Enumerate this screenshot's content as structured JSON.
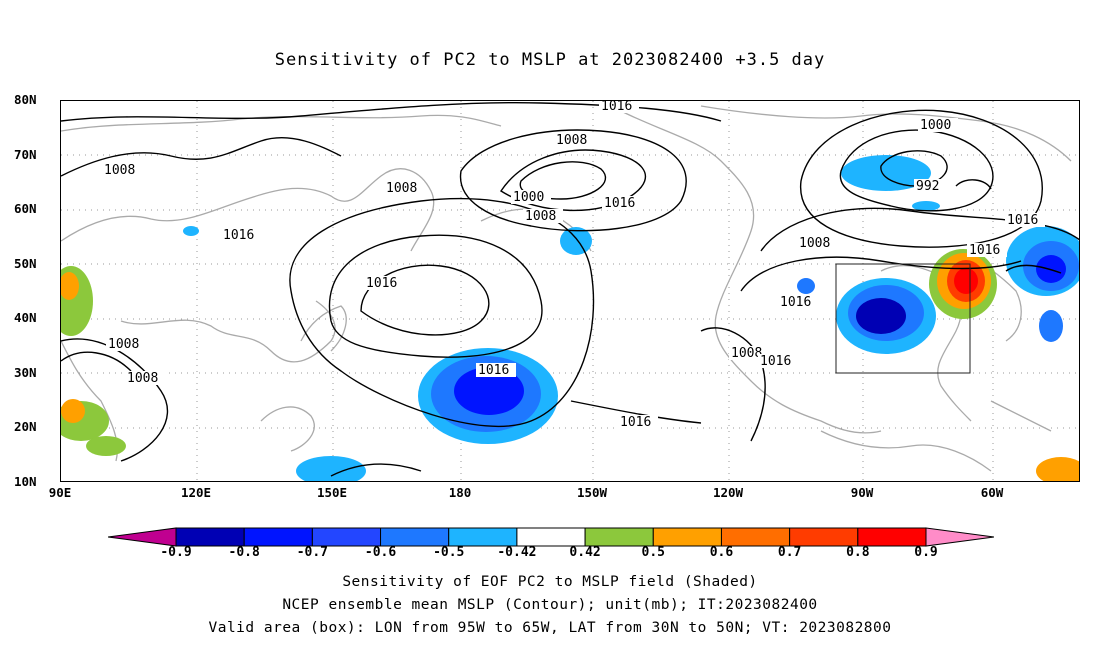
{
  "title": "Sensitivity of PC2 to MSLP at 2023082400 +3.5 day",
  "map": {
    "lat_labels": [
      "80N",
      "70N",
      "60N",
      "50N",
      "40N",
      "30N",
      "20N",
      "10N"
    ],
    "lon_labels": [
      "90E",
      "120E",
      "150E",
      "180",
      "150W",
      "120W",
      "90W",
      "60W"
    ],
    "contour_labels": [
      "1016",
      "1008",
      "1000",
      "992",
      "1008",
      "1008",
      "1000",
      "1008",
      "1016",
      "1016",
      "1016",
      "1016",
      "1016",
      "1008",
      "1008",
      "1008",
      "1016",
      "1016",
      "1008",
      "1016",
      "1016"
    ],
    "box": {
      "lon_from": "95W",
      "lon_to": "65W",
      "lat_from": "30N",
      "lat_to": "50N"
    }
  },
  "colorbar": {
    "labels": [
      "-0.9",
      "-0.8",
      "-0.7",
      "-0.6",
      "-0.5",
      "-0.42",
      "0.42",
      "0.5",
      "0.6",
      "0.7",
      "0.8",
      "0.9"
    ],
    "colors": [
      "#c00090",
      "#0000b4",
      "#0014ff",
      "#2346ff",
      "#1e78ff",
      "#1eb4ff",
      "#ffffff",
      "#8cc83c",
      "#ffa000",
      "#ff6e00",
      "#ff3c00",
      "#ff0000",
      "#ff8cc8"
    ]
  },
  "captions": [
    "Sensitivity of EOF PC2 to MSLP field (Shaded)",
    "NCEP ensemble mean MSLP (Contour); unit(mb); IT:2023082400",
    "Valid area (box): LON from 95W to 65W, LAT from 30N to 50N; VT: 2023082800"
  ]
}
